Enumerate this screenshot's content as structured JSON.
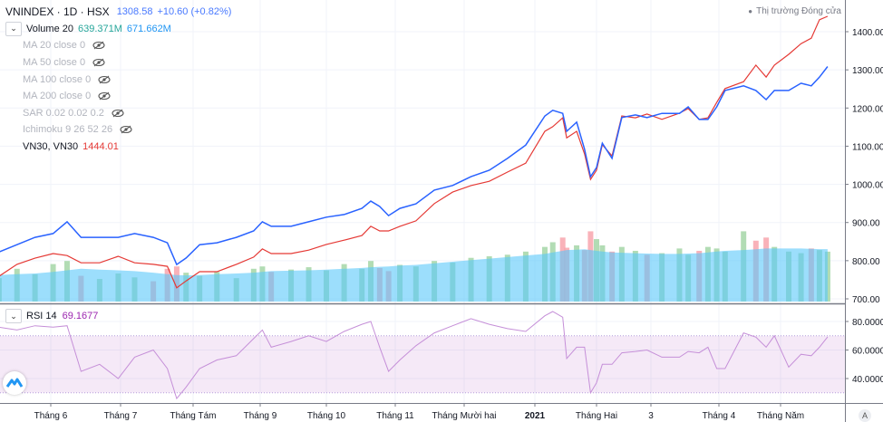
{
  "header": {
    "symbol": "VNINDEX · 1D · HSX",
    "price": "1308.58",
    "change": "+10.60 (+0.82%)",
    "market_status": "Thị trường Đóng cửa"
  },
  "indicators": {
    "volume": {
      "label": "Volume 20",
      "value1": "639.371M",
      "value2": "671.662M"
    },
    "hidden": [
      {
        "label": "MA 20 close 0",
        "icon": "eye-crossed-icon"
      },
      {
        "label": "MA 50 close 0",
        "icon": "eye-crossed-icon"
      },
      {
        "label": "MA 100 close 0",
        "icon": "eye-crossed-icon"
      },
      {
        "label": "MA 200 close 0",
        "icon": "eye-crossed-icon"
      },
      {
        "label": "SAR 0.02 0.02 0.2",
        "icon": "eye-crossed-icon"
      },
      {
        "label": "Ichimoku 9 26 52 26",
        "icon": "eye-crossed-icon"
      }
    ],
    "compare": {
      "label": "VN30, VN30",
      "value": "1444.01"
    },
    "rsi": {
      "label": "RSI 14",
      "value": "69.1677"
    }
  },
  "auto_label": "A",
  "colors": {
    "vnindex": "#2962ff",
    "vn30": "#e53935",
    "rsi": "#9c27b0",
    "volume_ma": "#5ac8fa",
    "vol_up": "#a5d6a7",
    "vol_down": "#f8a5ad"
  },
  "chart_data": [
    {
      "type": "line",
      "price_axis": {
        "ticks": [
          "1400.00",
          "1300.00",
          "1200.00",
          "1100.00",
          "1000.00",
          "900.00",
          "800.00",
          "700.00"
        ],
        "ylim": [
          700,
          1400
        ]
      },
      "x_ticks": [
        {
          "label": "Tháng 6",
          "date": "2020-06-01"
        },
        {
          "label": "Tháng 7",
          "date": "2020-07-01"
        },
        {
          "label": "Tháng Tám",
          "date": "2020-08-01"
        },
        {
          "label": "Tháng 9",
          "date": "2020-09-01"
        },
        {
          "label": "Tháng 10",
          "date": "2020-10-01"
        },
        {
          "label": "Tháng 11",
          "date": "2020-11-01"
        },
        {
          "label": "Tháng Mười hai",
          "date": "2020-12-01"
        },
        {
          "label": "2021",
          "date": "2021-01-01"
        },
        {
          "label": "Tháng Hai",
          "date": "2021-02-01"
        },
        {
          "label": "3",
          "date": "2021-03-01"
        },
        {
          "label": "Tháng 4",
          "date": "2021-04-01"
        },
        {
          "label": "Tháng Năm",
          "date": "2021-05-01"
        }
      ],
      "x": [
        "2020-05-09",
        "2020-05-17",
        "2020-05-25",
        "2020-06-02",
        "2020-06-08",
        "2020-06-14",
        "2020-06-22",
        "2020-06-30",
        "2020-07-07",
        "2020-07-15",
        "2020-07-21",
        "2020-07-25",
        "2020-07-29",
        "2020-08-04",
        "2020-08-12",
        "2020-08-21",
        "2020-08-29",
        "2020-09-02",
        "2020-09-06",
        "2020-09-15",
        "2020-09-23",
        "2020-10-01",
        "2020-10-09",
        "2020-10-17",
        "2020-10-21",
        "2020-10-25",
        "2020-10-29",
        "2020-11-03",
        "2020-11-10",
        "2020-11-18",
        "2020-11-26",
        "2020-12-04",
        "2020-12-12",
        "2020-12-20",
        "2020-12-28",
        "2021-01-06",
        "2021-01-10",
        "2021-01-15",
        "2021-01-17",
        "2021-01-22",
        "2021-01-26",
        "2021-01-29",
        "2021-02-01",
        "2021-02-04",
        "2021-02-09",
        "2021-02-14",
        "2021-02-21",
        "2021-02-27",
        "2021-03-06",
        "2021-03-14",
        "2021-03-18",
        "2021-03-23",
        "2021-03-27",
        "2021-03-31",
        "2021-04-04",
        "2021-04-13",
        "2021-04-19",
        "2021-04-24",
        "2021-04-28",
        "2021-05-05",
        "2021-05-11",
        "2021-05-16",
        "2021-05-20",
        "2021-05-24"
      ],
      "series": [
        {
          "name": "VNINDEX",
          "axis": "price",
          "values": [
            823,
            842,
            861,
            871,
            902,
            861,
            861,
            861,
            871,
            861,
            847,
            790,
            807,
            842,
            847,
            861,
            878,
            902,
            890,
            890,
            902,
            914,
            921,
            937,
            956,
            942,
            918,
            937,
            949,
            985,
            997,
            1020,
            1037,
            1068,
            1103,
            1179,
            1194,
            1186,
            1139,
            1163,
            1092,
            1020,
            1044,
            1108,
            1068,
            1175,
            1182,
            1175,
            1186,
            1186,
            1203,
            1170,
            1170,
            1203,
            1246,
            1258,
            1246,
            1222,
            1246,
            1246,
            1265,
            1258,
            1281,
            1308.58
          ]
        },
        {
          "name": "VN30",
          "axis": "overlay",
          "values": [
            768,
            799,
            815,
            827,
            822,
            803,
            803,
            820,
            803,
            799,
            794,
            738,
            756,
            780,
            780,
            799,
            818,
            839,
            827,
            827,
            836,
            851,
            862,
            874,
            898,
            886,
            886,
            898,
            912,
            957,
            987,
            1004,
            1015,
            1039,
            1062,
            1145,
            1157,
            1180,
            1128,
            1145,
            1086,
            1020,
            1044,
            1110,
            1081,
            1185,
            1180,
            1190,
            1176,
            1192,
            1204,
            1176,
            1180,
            1220,
            1256,
            1274,
            1317,
            1286,
            1317,
            1345,
            1373,
            1387,
            1435,
            1444.01
          ]
        },
        {
          "name": "Volume",
          "axis": "volume",
          "unit": "M",
          "values": [
            300,
            420,
            350,
            480,
            520,
            330,
            290,
            360,
            310,
            260,
            420,
            450,
            370,
            330,
            380,
            300,
            420,
            450,
            380,
            410,
            440,
            400,
            480,
            420,
            520,
            430,
            390,
            470,
            450,
            520,
            500,
            560,
            580,
            600,
            640,
            700,
            760,
            820,
            690,
            720,
            660,
            900,
            800,
            720,
            640,
            700,
            650,
            600,
            620,
            680,
            600,
            650,
            700,
            680,
            640,
            900,
            780,
            820,
            700,
            640,
            620,
            680,
            660,
            639.371
          ]
        },
        {
          "name": "Volume MA",
          "axis": "volume",
          "unit": "M",
          "values": [
            340,
            350,
            360,
            380,
            400,
            420,
            410,
            400,
            390,
            370,
            350,
            340,
            335,
            340,
            350,
            360,
            370,
            380,
            390,
            395,
            400,
            410,
            420,
            430,
            440,
            445,
            450,
            460,
            470,
            490,
            510,
            530,
            550,
            570,
            590,
            610,
            630,
            650,
            660,
            665,
            670,
            660,
            650,
            640,
            630,
            625,
            620,
            615,
            610,
            610,
            615,
            620,
            630,
            640,
            650,
            660,
            670,
            680,
            680,
            680,
            680,
            675,
            672,
            671.662
          ]
        }
      ]
    },
    {
      "type": "line",
      "title": "RSI 14",
      "axis_ticks": [
        "80.0000",
        "60.0000",
        "40.0000"
      ],
      "bands": [
        30,
        70
      ],
      "series": [
        {
          "name": "RSI 14",
          "values": [
            76,
            74,
            77,
            76,
            77,
            45,
            50,
            40,
            55,
            60,
            47,
            26,
            34,
            47,
            53,
            56,
            68,
            74,
            62,
            66,
            70,
            66,
            73,
            78,
            80,
            62,
            45,
            53,
            63,
            72,
            77,
            82,
            78,
            75,
            73,
            84,
            87,
            83,
            54,
            62,
            62,
            30,
            37,
            50,
            50,
            58,
            59,
            60,
            55,
            55,
            59,
            58,
            62,
            47,
            47,
            72,
            69,
            62,
            70,
            48,
            57,
            56,
            62,
            69.1677
          ]
        }
      ]
    }
  ]
}
